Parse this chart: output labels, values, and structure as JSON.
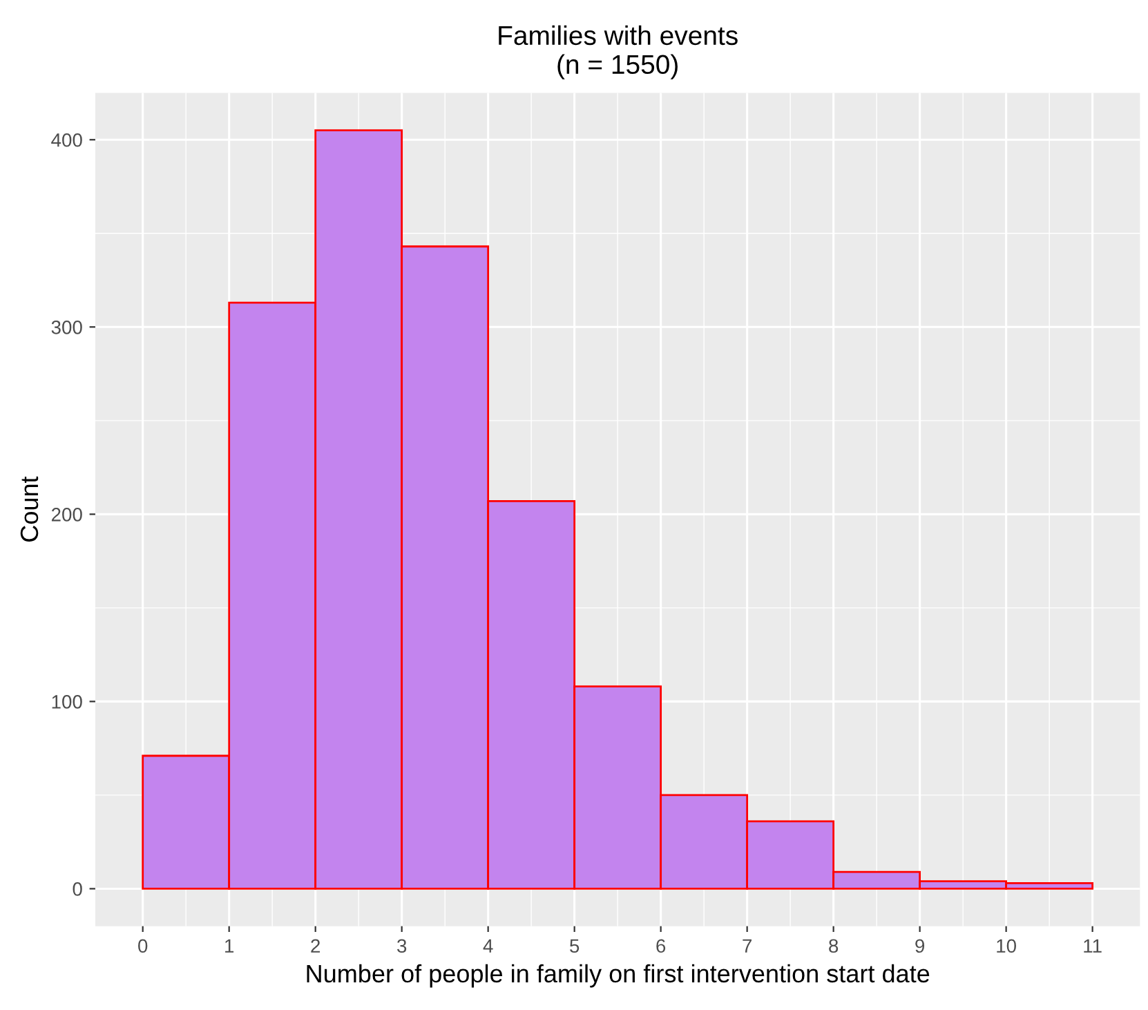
{
  "chart_data": {
    "type": "histogram",
    "title": "Families with events\n(n = 1550)",
    "xlabel": "Number of people in family on first intervention start date",
    "ylabel": "Count",
    "bins": [
      0,
      1,
      2,
      3,
      4,
      5,
      6,
      7,
      8,
      9,
      10,
      11
    ],
    "values": [
      71,
      313,
      405,
      343,
      207,
      108,
      50,
      36,
      9,
      4,
      3
    ],
    "color": "#c384ee",
    "xlim": [
      -0.55,
      11.55
    ],
    "ylim": [
      -20,
      425
    ],
    "xticks": [
      0,
      1,
      2,
      3,
      4,
      5,
      6,
      7,
      8,
      9,
      10,
      11
    ],
    "yticks": [
      0,
      100,
      200,
      300,
      400
    ],
    "grid": true
  }
}
